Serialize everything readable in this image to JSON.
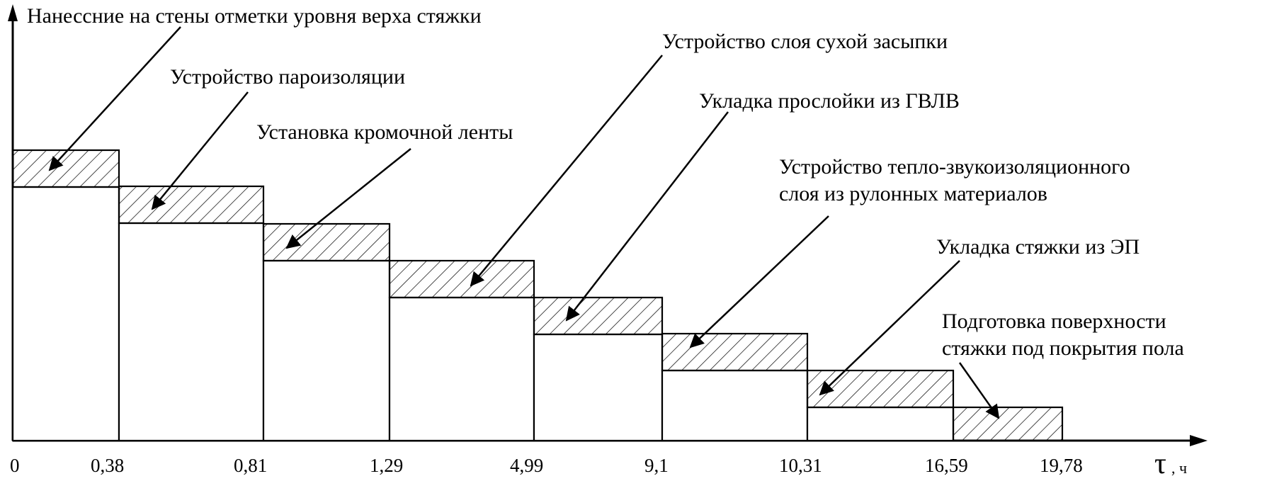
{
  "axis": {
    "y_label": "Нанесение на стены отметки уровня верха стяжки",
    "x_symbol": "τ",
    "x_unit": ", ч",
    "ticks": [
      "0",
      "0,38",
      "0,81",
      "1,29",
      "4,99",
      "9,1",
      "10,31",
      "16,59",
      "19,78"
    ]
  },
  "operations": [
    {
      "label": [
        "Нанессние на стены отметки уровня верха стяжки"
      ]
    },
    {
      "label": [
        "Устройство пароизоляции"
      ]
    },
    {
      "label": [
        "Установка кромочной ленты"
      ]
    },
    {
      "label": [
        "Устройство слоя сухой засыпки"
      ]
    },
    {
      "label": [
        "Укладка прослойки из ГВЛВ"
      ]
    },
    {
      "label": [
        "Устройство тепло-звукоизоляционного",
        "слоя  из рулонных материалов"
      ]
    },
    {
      "label": [
        "Укладка стяжки из ЭП"
      ]
    },
    {
      "label": [
        "Подготовка поверхности",
        "стяжки под покрытия пола"
      ]
    }
  ],
  "colors": {
    "line": "#000000",
    "hatch": "#000000",
    "background": "#ffffff"
  }
}
